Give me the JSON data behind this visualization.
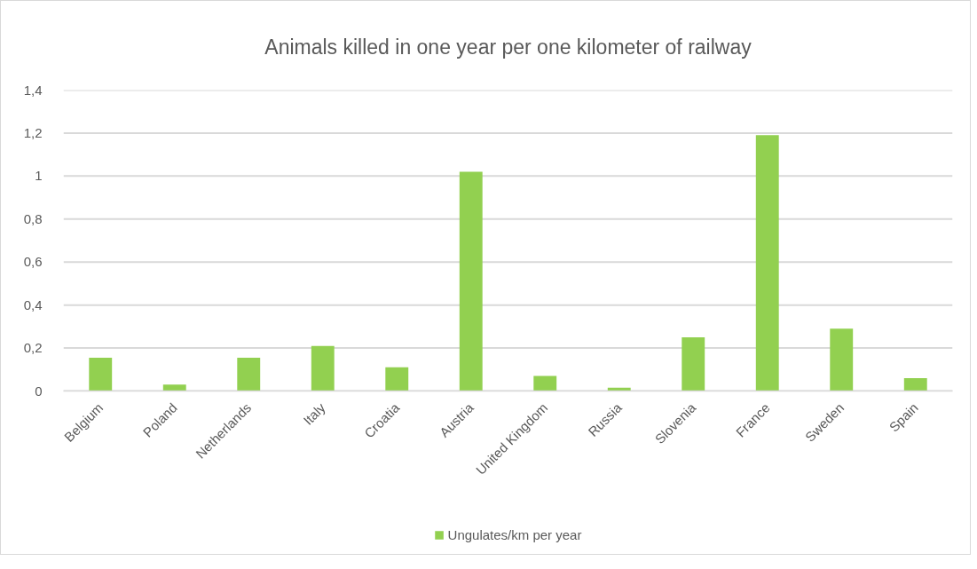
{
  "chart_data": {
    "type": "bar",
    "title": "Animals killed in one year per one kilometer of railway",
    "categories": [
      "Belgium",
      "Poland",
      "Netherlands",
      "Italy",
      "Croatia",
      "Austria",
      "United Kingdom",
      "Russia",
      "Slovenia",
      "France",
      "Sweden",
      "Spain"
    ],
    "series": [
      {
        "name": "Ungulates/km per year",
        "color": "#92d050",
        "values": [
          0.155,
          0.03,
          0.155,
          0.21,
          0.11,
          1.02,
          0.07,
          0.015,
          0.25,
          1.19,
          0.29,
          0.06
        ]
      }
    ],
    "ylim": [
      0,
      1.4
    ],
    "yticks": [
      0,
      {
        "value": 0.2,
        "label": "0,2"
      },
      {
        "value": 0.4,
        "label": "0,4"
      },
      {
        "value": 0.6,
        "label": "0,6"
      },
      {
        "value": 0.8,
        "label": "0,8"
      },
      1,
      {
        "value": 1.2,
        "label": "1,2"
      },
      {
        "value": 1.4,
        "label": "1,4"
      }
    ],
    "grid": "y",
    "legend": "bottom"
  }
}
